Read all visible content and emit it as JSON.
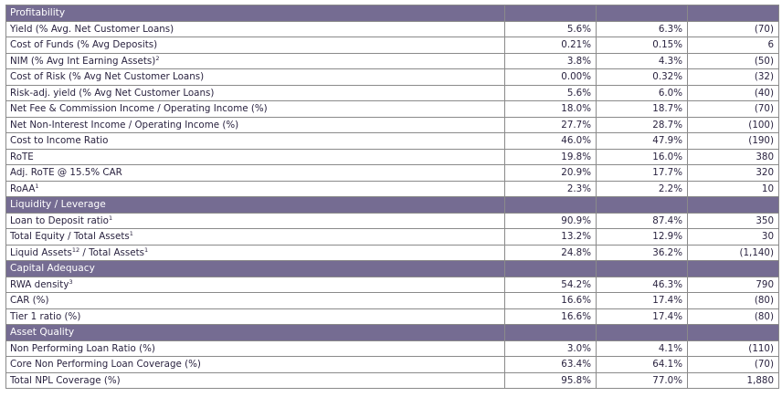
{
  "sections": [
    {
      "title": "Profitability",
      "rows": [
        {
          "label": "Yield (% Avg. Net Customer Loans)",
          "sup": "",
          "v1": "5.6%",
          "v2": "6.3%",
          "v3": "(70)"
        },
        {
          "label": "Cost of Funds (% Avg Deposits)",
          "sup": "",
          "v1": "0.21%",
          "v2": "0.15%",
          "v3": "6"
        },
        {
          "label": "NIM (% Avg Int Earning Assets)",
          "sup": "2",
          "v1": "3.8%",
          "v2": "4.3%",
          "v3": "(50)"
        },
        {
          "label": "Cost of Risk (% Avg Net Customer Loans)",
          "sup": "",
          "v1": "0.00%",
          "v2": "0.32%",
          "v3": "(32)"
        },
        {
          "label": "Risk-adj. yield (% Avg Net Customer Loans)",
          "sup": "",
          "v1": "5.6%",
          "v2": "6.0%",
          "v3": "(40)"
        },
        {
          "label": "Net Fee & Commission Income / Operating Income (%)",
          "sup": "",
          "v1": "18.0%",
          "v2": "18.7%",
          "v3": "(70)"
        },
        {
          "label": "Net Non-Interest Income / Operating Income (%)",
          "sup": "",
          "v1": "27.7%",
          "v2": "28.7%",
          "v3": "(100)"
        },
        {
          "label": "Cost to Income Ratio",
          "sup": "",
          "v1": "46.0%",
          "v2": "47.9%",
          "v3": "(190)"
        },
        {
          "label": "RoTE",
          "sup": "",
          "v1": "19.8%",
          "v2": "16.0%",
          "v3": "380"
        },
        {
          "label": "Adj. RoTE @ 15.5% CAR",
          "sup": "",
          "v1": "20.9%",
          "v2": "17.7%",
          "v3": "320"
        },
        {
          "label": "RoAA",
          "sup": "1",
          "v1": "2.3%",
          "v2": "2.2%",
          "v3": "10"
        }
      ]
    },
    {
      "title": "Liquidity / Leverage",
      "rows": [
        {
          "label": "Loan to Deposit ratio",
          "sup": "1",
          "v1": "90.9%",
          "v2": "87.4%",
          "v3": "350"
        },
        {
          "label": "Total Equity / Total Assets",
          "sup": "1",
          "v1": "13.2%",
          "v2": "12.9%",
          "v3": "30"
        },
        {
          "label": "Liquid Assets",
          "sup": "12",
          "label_suffix": " / Total Assets",
          "sup2": "1",
          "v1": "24.8%",
          "v2": "36.2%",
          "v3": "(1,140)"
        }
      ]
    },
    {
      "title": "Capital Adequacy",
      "rows": [
        {
          "label": "RWA density",
          "sup": "3",
          "v1": "54.2%",
          "v2": "46.3%",
          "v3": "790"
        },
        {
          "label": "CAR (%)",
          "sup": "",
          "v1": "16.6%",
          "v2": "17.4%",
          "v3": "(80)"
        },
        {
          "label": "Tier 1 ratio (%)",
          "sup": "",
          "v1": "16.6%",
          "v2": "17.4%",
          "v3": "(80)"
        }
      ]
    },
    {
      "title": "Asset Quality",
      "rows": [
        {
          "label": "Non Performing Loan Ratio (%)",
          "sup": "",
          "v1": "3.0%",
          "v2": "4.1%",
          "v3": "(110)"
        },
        {
          "label": "Core Non Performing Loan Coverage (%)",
          "sup": "",
          "v1": "63.4%",
          "v2": "64.1%",
          "v3": "(70)"
        },
        {
          "label": "Total NPL Coverage (%)",
          "sup": "",
          "v1": "95.8%",
          "v2": "77.0%",
          "v3": "1,880"
        }
      ]
    }
  ]
}
